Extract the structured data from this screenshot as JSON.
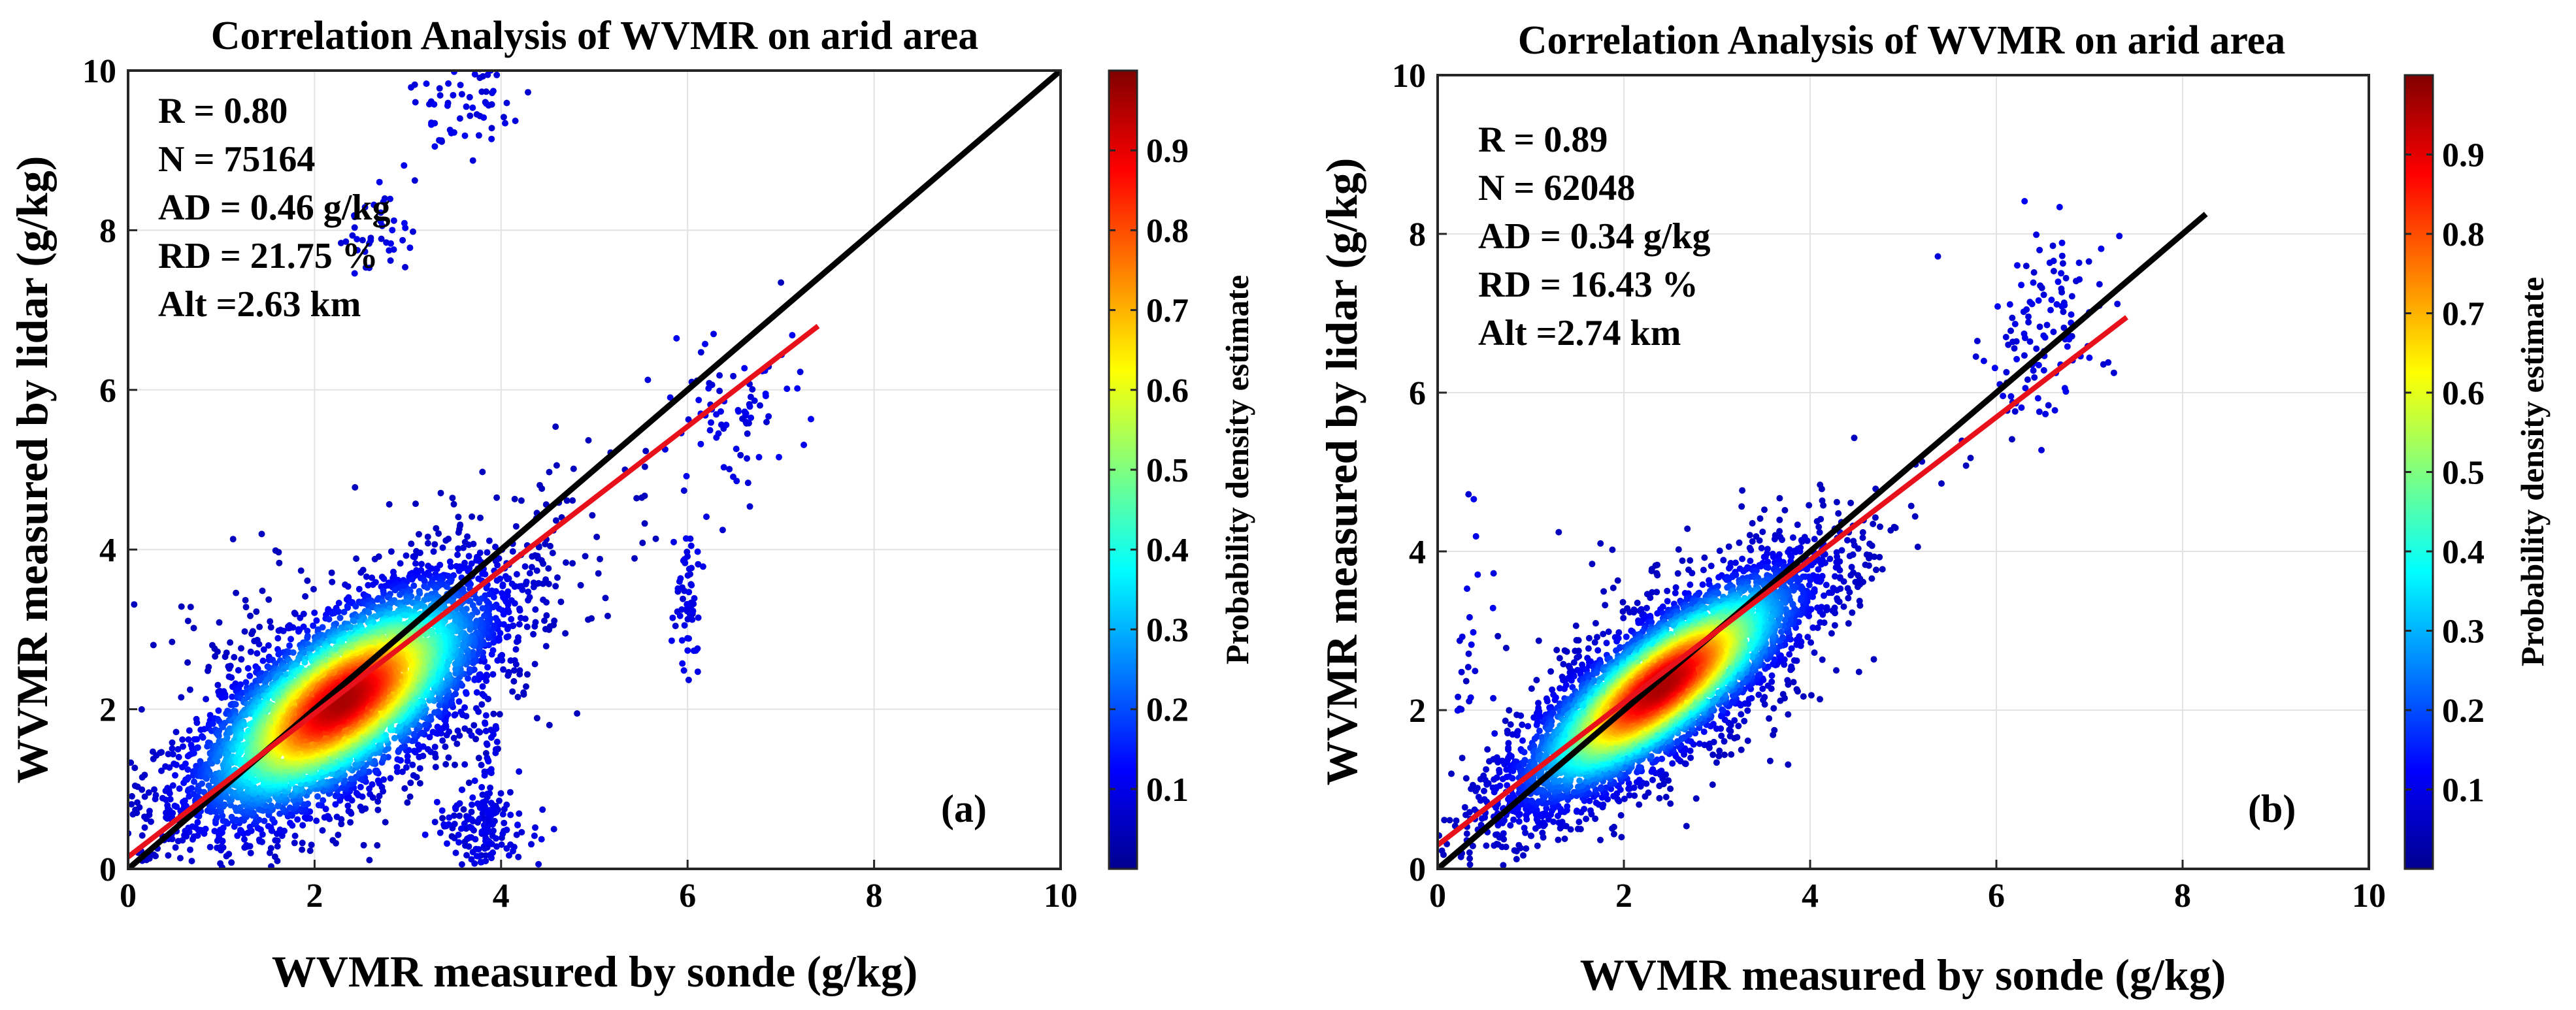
{
  "colors": {
    "one_to_one_line": "#000000",
    "fit_line": "#e8101a",
    "grid": "#e3e3e3",
    "axis": "#262626"
  },
  "chart_data": [
    {
      "type": "scatter",
      "title": "Correlation Analysis of WVMR on arid area",
      "xlabel": "WVMR measured by sonde  (g/kg)",
      "ylabel": "WVMR measured by lidar  (g/kg)",
      "xlim": [
        0,
        10
      ],
      "ylim": [
        0,
        10
      ],
      "xticks": [
        "0",
        "2",
        "4",
        "6",
        "8",
        "10"
      ],
      "yticks": [
        "0",
        "2",
        "4",
        "6",
        "8",
        "10"
      ],
      "grid": true,
      "stats": [
        "R = 0.80",
        "N = 75164",
        "AD = 0.46 g/kg",
        "RD = 21.75  %",
        "Alt =2.63 km"
      ],
      "panel_label": "(a)",
      "colorbar": {
        "label": "Probability density estimate",
        "range": [
          0,
          1
        ],
        "ticks": [
          "0.1",
          "0.2",
          "0.3",
          "0.4",
          "0.5",
          "0.6",
          "0.7",
          "0.8",
          "0.9"
        ]
      },
      "one_to_one_line": {
        "x": [
          0,
          10
        ],
        "y": [
          0,
          10
        ]
      },
      "fit_line": {
        "x": [
          0,
          7.4
        ],
        "y": [
          0.15,
          6.8
        ]
      },
      "point_cloud": {
        "center": [
          2.3,
          2.1
        ],
        "slope": 0.92,
        "spread_along": 0.95,
        "spread_across": 0.42,
        "n_drawn": 6500
      },
      "outlier_clusters": [
        {
          "center": [
            3.6,
            9.6
          ],
          "spread": [
            0.3,
            0.35
          ],
          "n": 70
        },
        {
          "center": [
            2.7,
            8.0
          ],
          "spread": [
            0.25,
            0.3
          ],
          "n": 40
        },
        {
          "center": [
            6.0,
            3.4
          ],
          "spread": [
            0.08,
            0.45
          ],
          "n": 60
        },
        {
          "center": [
            3.8,
            0.5
          ],
          "spread": [
            0.25,
            0.3
          ],
          "n": 140
        },
        {
          "center": [
            3.85,
            1.3
          ],
          "spread": [
            0.06,
            0.7
          ],
          "n": 60
        },
        {
          "center": [
            6.5,
            5.7
          ],
          "spread": [
            0.35,
            0.55
          ],
          "n": 80
        }
      ]
    },
    {
      "type": "scatter",
      "title": "Correlation Analysis of WVMR on arid area",
      "xlabel": "WVMR measured by sonde  (g/kg)",
      "ylabel": "WVMR measured by lidar  (g/kg)",
      "xlim": [
        0,
        10
      ],
      "ylim": [
        0,
        10
      ],
      "xticks": [
        "0",
        "2",
        "4",
        "6",
        "8",
        "10"
      ],
      "yticks": [
        "0",
        "2",
        "4",
        "6",
        "8",
        "10"
      ],
      "grid": true,
      "stats": [
        "R = 0.89",
        "N = 62048",
        "AD = 0.34 g/kg",
        "RD = 16.43 %",
        "Alt =2.74 km"
      ],
      "panel_label": "(b)",
      "colorbar": {
        "label": "Probability density estimate",
        "range": [
          0,
          1
        ],
        "ticks": [
          "0.1",
          "0.2",
          "0.3",
          "0.4",
          "0.5",
          "0.6",
          "0.7",
          "0.8",
          "0.9"
        ]
      },
      "one_to_one_line": {
        "x": [
          0,
          8.25
        ],
        "y": [
          0,
          8.25
        ]
      },
      "fit_line": {
        "x": [
          0,
          7.4
        ],
        "y": [
          0.3,
          6.95
        ]
      },
      "point_cloud": {
        "center": [
          2.4,
          2.3
        ],
        "slope": 0.95,
        "spread_along": 0.95,
        "spread_across": 0.32,
        "n_drawn": 6500
      },
      "outlier_clusters": [
        {
          "center": [
            6.5,
            6.6
          ],
          "spread": [
            0.4,
            0.5
          ],
          "n": 90
        },
        {
          "center": [
            6.7,
            7.5
          ],
          "spread": [
            0.3,
            0.35
          ],
          "n": 30
        },
        {
          "center": [
            0.4,
            2.8
          ],
          "spread": [
            0.15,
            1.0
          ],
          "n": 25
        }
      ]
    }
  ]
}
